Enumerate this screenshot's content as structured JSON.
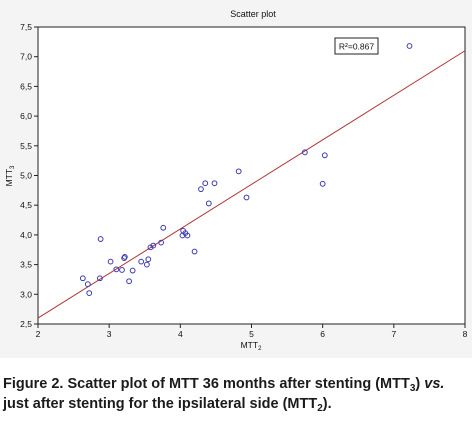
{
  "chart_data": {
    "type": "scatter",
    "title": "Scatter plot",
    "xlabel": {
      "base": "MTT",
      "sub": "2"
    },
    "ylabel": {
      "base": "MTT",
      "sub": "3"
    },
    "xlim": [
      2,
      8
    ],
    "ylim": [
      2.5,
      7.5
    ],
    "xticks": [
      "2",
      "3",
      "4",
      "5",
      "6",
      "7",
      "8"
    ],
    "yticks": [
      "2,5",
      "3,0",
      "3,5",
      "4,0",
      "4,5",
      "5,0",
      "5,5",
      "6,0",
      "6,5",
      "7,0",
      "7,5"
    ],
    "annotation": "R²=0.867",
    "fit_line": {
      "x": [
        2,
        8
      ],
      "y": [
        2.6,
        7.1
      ]
    },
    "grid": false,
    "marker_color": "#3b3bb0",
    "line_color": "#b03030",
    "points": [
      {
        "x": 2.63,
        "y": 3.27
      },
      {
        "x": 2.7,
        "y": 3.17
      },
      {
        "x": 2.72,
        "y": 3.02
      },
      {
        "x": 2.87,
        "y": 3.27
      },
      {
        "x": 2.88,
        "y": 3.93
      },
      {
        "x": 3.02,
        "y": 3.55
      },
      {
        "x": 3.1,
        "y": 3.42
      },
      {
        "x": 3.18,
        "y": 3.41
      },
      {
        "x": 3.21,
        "y": 3.61
      },
      {
        "x": 3.22,
        "y": 3.63
      },
      {
        "x": 3.28,
        "y": 3.22
      },
      {
        "x": 3.33,
        "y": 3.4
      },
      {
        "x": 3.45,
        "y": 3.55
      },
      {
        "x": 3.53,
        "y": 3.5
      },
      {
        "x": 3.55,
        "y": 3.59
      },
      {
        "x": 3.58,
        "y": 3.79
      },
      {
        "x": 3.62,
        "y": 3.82
      },
      {
        "x": 3.73,
        "y": 3.87
      },
      {
        "x": 3.76,
        "y": 4.12
      },
      {
        "x": 4.03,
        "y": 3.99
      },
      {
        "x": 4.04,
        "y": 4.07
      },
      {
        "x": 4.07,
        "y": 4.03
      },
      {
        "x": 4.1,
        "y": 3.99
      },
      {
        "x": 4.2,
        "y": 3.72
      },
      {
        "x": 4.29,
        "y": 4.77
      },
      {
        "x": 4.35,
        "y": 4.87
      },
      {
        "x": 4.4,
        "y": 4.53
      },
      {
        "x": 4.48,
        "y": 4.87
      },
      {
        "x": 4.82,
        "y": 5.07
      },
      {
        "x": 4.93,
        "y": 4.63
      },
      {
        "x": 5.75,
        "y": 5.39
      },
      {
        "x": 6.0,
        "y": 4.86
      },
      {
        "x": 6.03,
        "y": 5.34
      },
      {
        "x": 7.22,
        "y": 7.18
      }
    ]
  },
  "caption": {
    "part1": "Figure 2. Scatter plot of MTT 36 months after stenting (MTT",
    "sub1": "3",
    "part2": ") ",
    "vs": "vs.",
    "part3": " just after stenting for the ipsilateral side (MTT",
    "sub2": "2",
    "part4": ")."
  }
}
